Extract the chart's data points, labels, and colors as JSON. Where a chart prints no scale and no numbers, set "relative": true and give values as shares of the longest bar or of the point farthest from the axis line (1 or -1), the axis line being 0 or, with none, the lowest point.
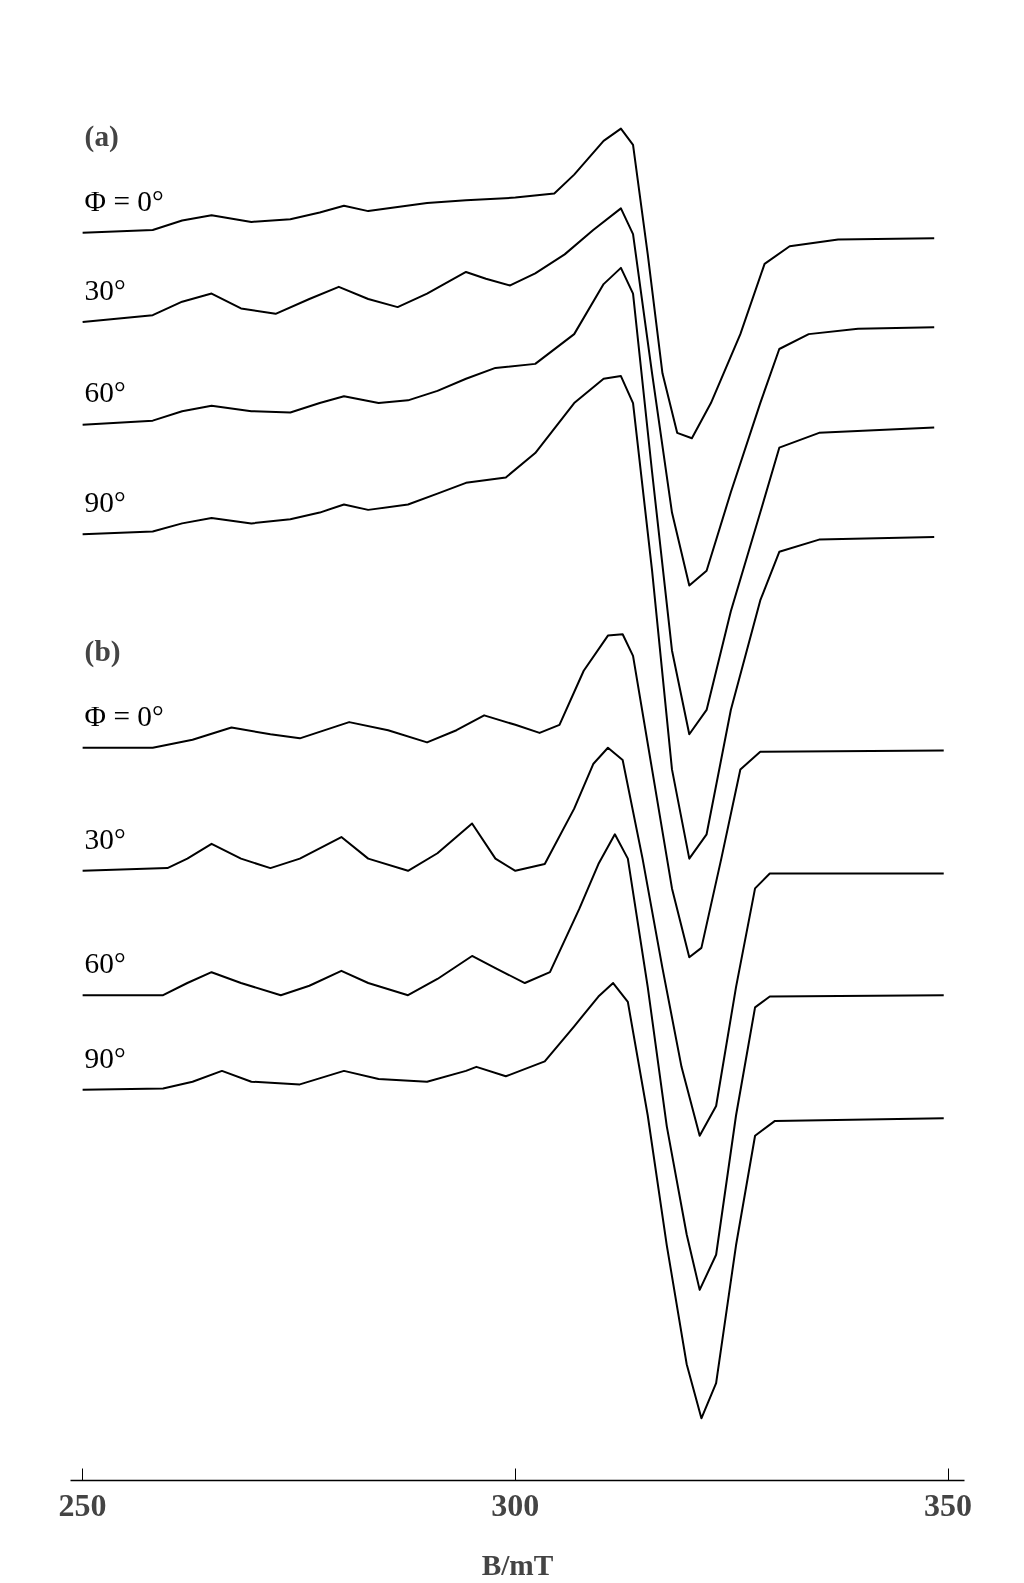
{
  "chart_data": {
    "type": "line",
    "relative": true,
    "xlabel": "B/mT",
    "xlim": [
      248.6,
      351.9
    ],
    "xticks": [
      250,
      300,
      350
    ],
    "grid": false,
    "marker": "none",
    "line_style": "solid",
    "annotations": [
      "(a)",
      "(b)"
    ],
    "series": [
      {
        "name": "Φ = 0°",
        "color": "#000000",
        "x": [
          250.0,
          258.1,
          261.5,
          264.9,
          269.5,
          274.0,
          277.4,
          280.2,
          283.0,
          289.8,
          294.3,
          300.0,
          304.5,
          306.8,
          310.2,
          312.2,
          313.6,
          315.3,
          317.0,
          318.7,
          320.4,
          322.6,
          326.0,
          328.8,
          331.7,
          337.3,
          348.4
        ],
        "values": [
          0.923,
          0.925,
          0.932,
          0.936,
          0.931,
          0.933,
          0.938,
          0.943,
          0.939,
          0.945,
          0.947,
          0.949,
          0.952,
          0.966,
          0.991,
          1.0,
          0.988,
          0.907,
          0.819,
          0.775,
          0.771,
          0.797,
          0.848,
          0.9,
          0.913,
          0.918,
          0.919
        ]
      },
      {
        "name": "30°",
        "color": "#000000",
        "x": [
          250.0,
          258.1,
          261.5,
          264.9,
          268.3,
          272.3,
          276.2,
          279.6,
          283.0,
          286.4,
          289.8,
          294.3,
          296.6,
          299.4,
          302.3,
          305.7,
          309.0,
          312.2,
          313.6,
          315.8,
          318.1,
          320.1,
          322.1,
          324.9,
          328.3,
          330.5,
          333.9,
          339.6,
          348.4
        ],
        "values": [
          0.857,
          0.862,
          0.872,
          0.878,
          0.867,
          0.863,
          0.874,
          0.883,
          0.874,
          0.868,
          0.878,
          0.894,
          0.889,
          0.884,
          0.893,
          0.907,
          0.925,
          0.941,
          0.922,
          0.819,
          0.716,
          0.662,
          0.673,
          0.731,
          0.797,
          0.837,
          0.848,
          0.852,
          0.853
        ]
      },
      {
        "name": "60°",
        "color": "#000000",
        "x": [
          250.0,
          258.1,
          261.5,
          264.9,
          269.5,
          274.0,
          277.4,
          280.2,
          284.2,
          287.6,
          291.0,
          294.3,
          297.7,
          302.3,
          306.8,
          310.2,
          312.2,
          313.6,
          315.8,
          318.1,
          320.1,
          322.1,
          324.9,
          328.3,
          330.5,
          335.1,
          348.4
        ],
        "values": [
          0.781,
          0.784,
          0.791,
          0.795,
          0.791,
          0.79,
          0.797,
          0.802,
          0.797,
          0.799,
          0.806,
          0.815,
          0.823,
          0.826,
          0.848,
          0.885,
          0.897,
          0.878,
          0.746,
          0.614,
          0.552,
          0.57,
          0.643,
          0.716,
          0.764,
          0.775,
          0.779
        ]
      },
      {
        "name": "90°",
        "color": "#000000",
        "x": [
          250.0,
          258.1,
          261.5,
          264.9,
          269.5,
          274.0,
          277.4,
          280.2,
          283.0,
          287.6,
          291.0,
          294.3,
          298.9,
          302.3,
          306.8,
          310.2,
          312.2,
          313.6,
          315.8,
          318.1,
          320.1,
          322.1,
          324.9,
          328.3,
          330.5,
          335.1,
          348.4
        ],
        "values": [
          0.7,
          0.702,
          0.708,
          0.712,
          0.708,
          0.711,
          0.716,
          0.722,
          0.718,
          0.722,
          0.73,
          0.738,
          0.742,
          0.76,
          0.797,
          0.815,
          0.817,
          0.797,
          0.673,
          0.526,
          0.46,
          0.478,
          0.57,
          0.651,
          0.687,
          0.696,
          0.698
        ]
      },
      {
        "name": "Φ = 0°",
        "color": "#000000",
        "x": [
          250.0,
          258.1,
          262.7,
          267.2,
          271.7,
          275.1,
          280.8,
          285.3,
          289.8,
          293.2,
          296.4,
          300.0,
          302.8,
          305.1,
          307.9,
          310.7,
          312.4,
          313.6,
          315.8,
          318.1,
          320.1,
          321.5,
          323.8,
          326.0,
          328.3,
          349.5
        ],
        "values": [
          0.542,
          0.542,
          0.548,
          0.557,
          0.552,
          0.549,
          0.561,
          0.555,
          0.546,
          0.555,
          0.566,
          0.559,
          0.553,
          0.559,
          0.599,
          0.625,
          0.626,
          0.61,
          0.526,
          0.438,
          0.387,
          0.394,
          0.46,
          0.526,
          0.539,
          0.54
        ]
      },
      {
        "name": "30°",
        "color": "#000000",
        "x": [
          250.0,
          259.8,
          262.1,
          264.9,
          268.3,
          271.7,
          275.1,
          279.9,
          283.0,
          287.6,
          291.0,
          295.0,
          297.7,
          300.0,
          303.4,
          306.8,
          309.0,
          310.7,
          312.4,
          314.7,
          317.0,
          319.2,
          321.3,
          323.2,
          325.5,
          327.7,
          329.4,
          349.5
        ],
        "values": [
          0.451,
          0.453,
          0.46,
          0.471,
          0.46,
          0.453,
          0.46,
          0.476,
          0.46,
          0.451,
          0.464,
          0.486,
          0.46,
          0.451,
          0.456,
          0.497,
          0.53,
          0.542,
          0.533,
          0.46,
          0.379,
          0.306,
          0.255,
          0.277,
          0.365,
          0.438,
          0.449,
          0.449
        ]
      },
      {
        "name": "60°",
        "color": "#000000",
        "x": [
          250.0,
          259.3,
          262.1,
          264.9,
          268.3,
          272.9,
          276.2,
          279.9,
          283.0,
          287.6,
          291.0,
          295.0,
          297.7,
          301.1,
          304.0,
          307.4,
          309.6,
          311.5,
          313.0,
          315.3,
          317.5,
          319.8,
          321.3,
          323.2,
          325.5,
          327.7,
          329.4,
          349.5
        ],
        "values": [
          0.359,
          0.359,
          0.368,
          0.376,
          0.368,
          0.359,
          0.366,
          0.377,
          0.368,
          0.359,
          0.371,
          0.388,
          0.379,
          0.368,
          0.376,
          0.423,
          0.456,
          0.478,
          0.46,
          0.365,
          0.262,
          0.182,
          0.141,
          0.167,
          0.27,
          0.35,
          0.358,
          0.359
        ]
      },
      {
        "name": "90°",
        "color": "#000000",
        "x": [
          250.0,
          259.3,
          262.7,
          266.1,
          269.5,
          275.1,
          280.2,
          284.2,
          289.8,
          294.3,
          295.5,
          298.9,
          303.4,
          306.8,
          309.6,
          311.3,
          313.0,
          315.3,
          317.5,
          319.8,
          321.5,
          323.2,
          325.5,
          327.7,
          330.0,
          349.5
        ],
        "values": [
          0.289,
          0.29,
          0.295,
          0.303,
          0.295,
          0.293,
          0.303,
          0.297,
          0.295,
          0.303,
          0.306,
          0.299,
          0.31,
          0.336,
          0.358,
          0.368,
          0.354,
          0.27,
          0.174,
          0.086,
          0.046,
          0.072,
          0.174,
          0.255,
          0.266,
          0.268
        ]
      }
    ]
  }
}
